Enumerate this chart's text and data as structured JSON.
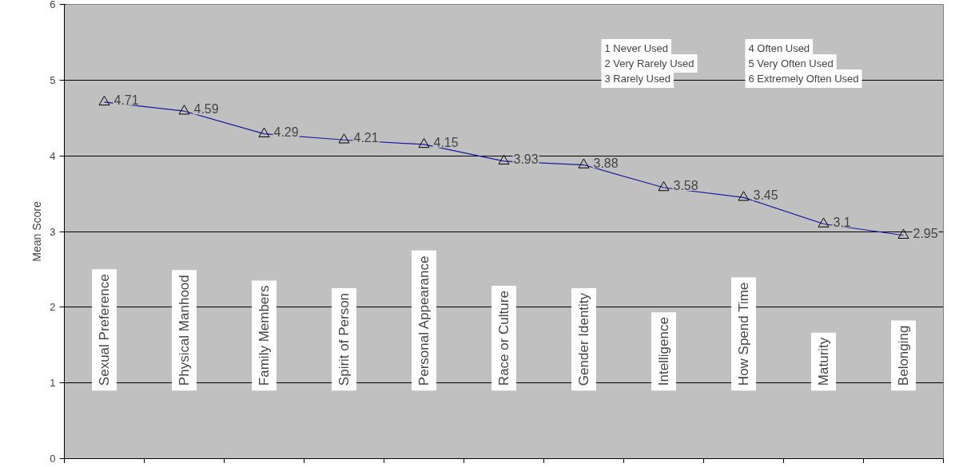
{
  "chart_data": {
    "type": "line",
    "ylabel": "Mean Score",
    "categories": [
      "Sexual Preference",
      "Physical Manhood",
      "Family Members",
      "Spirit of Person",
      "Personal Appearance",
      "Race or Culture",
      "Gender Identity",
      "Intelligence",
      "How Spend Time",
      "Maturity",
      "Belonging"
    ],
    "series": [
      {
        "color": "#1a1aa0",
        "values": [
          4.71,
          4.59,
          4.29,
          4.21,
          4.15,
          3.93,
          3.88,
          3.58,
          3.45,
          3.1,
          2.95
        ]
      }
    ],
    "ylim": [
      0,
      6
    ],
    "yticks": [
      0,
      1,
      2,
      3,
      4,
      5,
      6
    ],
    "grid": "y",
    "marker": "triangle",
    "line_style": "solid",
    "data_labels": true,
    "annotations": [
      "1 Never Used",
      "2 Very Rarely Used",
      "3 Rarely Used",
      "4 Often Used",
      "5 Very Often Used",
      "6 Extremely Often Used"
    ]
  }
}
